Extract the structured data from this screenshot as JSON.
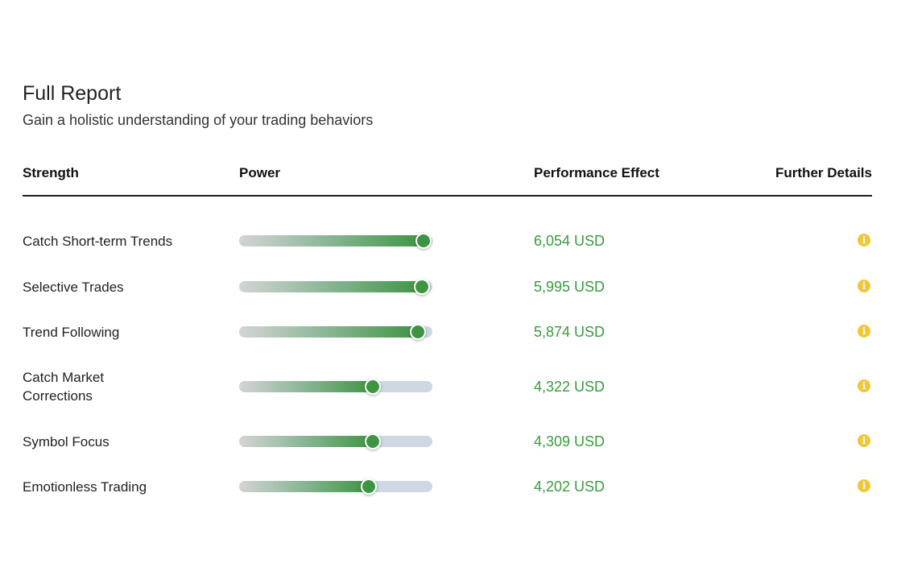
{
  "report": {
    "title": "Full Report",
    "subtitle": "Gain a holistic understanding of your trading behaviors"
  },
  "table": {
    "headers": {
      "strength": "Strength",
      "power": "Power",
      "effect": "Performance Effect",
      "details": "Further Details"
    },
    "rows": [
      {
        "strength": "Catch Short-term Trends",
        "power": 0.955,
        "effect": "6,054 USD"
      },
      {
        "strength": "Selective Trades",
        "power": 0.945,
        "effect": "5,995 USD"
      },
      {
        "strength": "Trend Following",
        "power": 0.925,
        "effect": "5,874 USD"
      },
      {
        "strength": "Catch Market Corrections",
        "power": 0.69,
        "effect": "4,322 USD"
      },
      {
        "strength": "Symbol Focus",
        "power": 0.69,
        "effect": "4,309 USD"
      },
      {
        "strength": "Emotionless Trading",
        "power": 0.67,
        "effect": "4,202 USD"
      }
    ],
    "info_icon_glyph": "i"
  },
  "colors": {
    "accent_green": "#3f9444",
    "value_green": "#3a9b3e",
    "info_yellow": "#f1c736",
    "track_gray": "#ced8e3"
  },
  "icons": {
    "details": "info-icon"
  }
}
